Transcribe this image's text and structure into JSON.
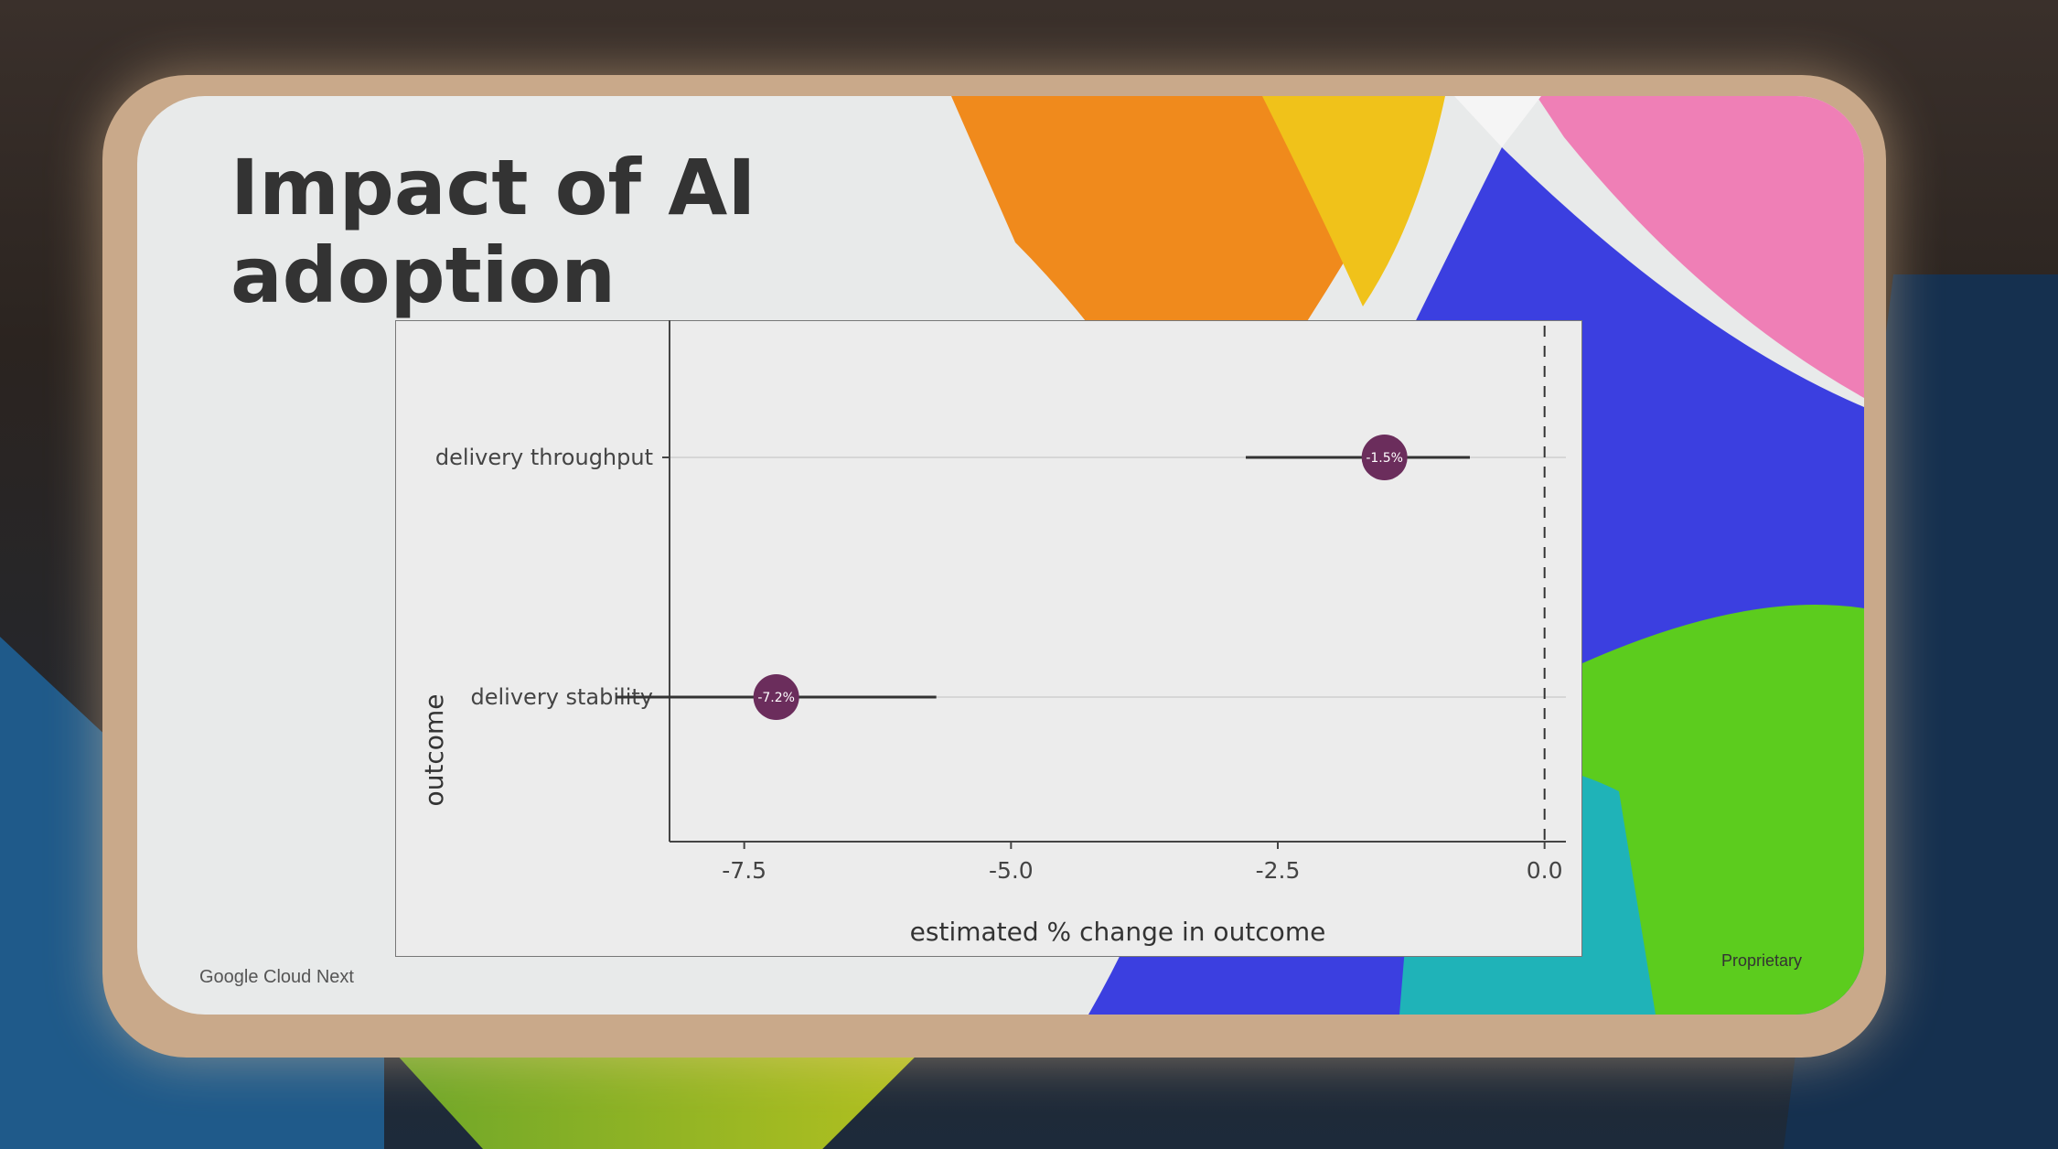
{
  "slide": {
    "title": "Impact of AI\nadoption",
    "footer_left": "Google Cloud Next",
    "footer_right": "Proprietary"
  },
  "colors": {
    "point": "#6b2d5c",
    "interval": "#333333",
    "reference_line": "#333333",
    "orange": "#f08a1c",
    "yellow": "#f0c21a",
    "pink": "#ef7fb6",
    "blue": "#3b3fe0",
    "green": "#5ccc1e"
  },
  "chart_data": {
    "type": "scatter",
    "xlabel": "estimated % change in outcome",
    "ylabel": "outcome",
    "xlim": [
      -8.2,
      0.2
    ],
    "x_ticks": [
      -7.5,
      -5.0,
      -2.5,
      0.0
    ],
    "x_tick_labels": [
      "-7.5",
      "-5.0",
      "-2.5",
      "0.0"
    ],
    "reference_line_x": 0.0,
    "reference_line_style": "dashed",
    "categories": [
      "delivery throughput",
      "delivery stability"
    ],
    "points": [
      {
        "category": "delivery throughput",
        "estimate": -1.5,
        "ci_low": -2.8,
        "ci_high": -0.7,
        "label": "-1.5%"
      },
      {
        "category": "delivery stability",
        "estimate": -7.2,
        "ci_low": -8.7,
        "ci_high": -5.7,
        "label": "-7.2%"
      }
    ],
    "grid": true,
    "legend": "none"
  }
}
